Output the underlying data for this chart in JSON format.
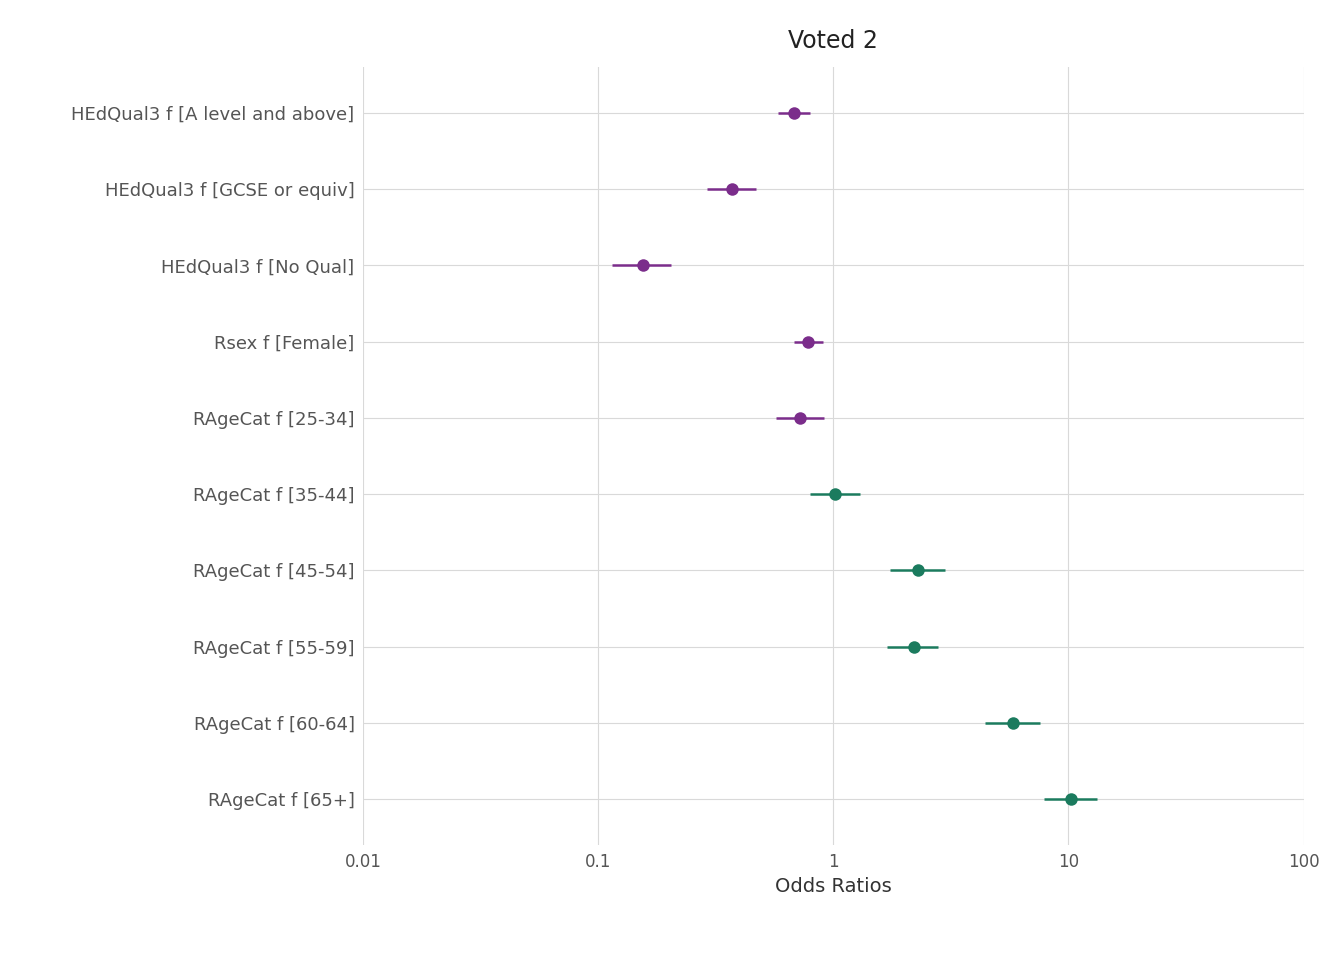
{
  "title": "Voted 2",
  "xlabel": "Odds Ratios",
  "background_color": "#ffffff",
  "grid_color": "#d9d9d9",
  "labels": [
    "HEdQual3 f [A level and above]",
    "HEdQual3 f [GCSE or equiv]",
    "HEdQual3 f [No Qual]",
    "Rsex f [Female]",
    "RAgeCat f [25-34]",
    "RAgeCat f [35-44]",
    "RAgeCat f [45-54]",
    "RAgeCat f [55-59]",
    "RAgeCat f [60-64]",
    "RAgeCat f [65+]"
  ],
  "or": [
    0.68,
    0.37,
    0.155,
    0.78,
    0.72,
    1.02,
    2.3,
    2.2,
    5.8,
    10.2
  ],
  "ci_low": [
    0.58,
    0.29,
    0.115,
    0.68,
    0.57,
    0.8,
    1.75,
    1.7,
    4.4,
    7.9
  ],
  "ci_high": [
    0.8,
    0.47,
    0.205,
    0.9,
    0.91,
    1.3,
    3.0,
    2.8,
    7.6,
    13.2
  ],
  "colors": [
    "#7B2D8B",
    "#7B2D8B",
    "#7B2D8B",
    "#7B2D8B",
    "#7B2D8B",
    "#1B7B5E",
    "#1B7B5E",
    "#1B7B5E",
    "#1B7B5E",
    "#1B7B5E"
  ],
  "xlim": [
    0.01,
    100
  ],
  "xticks": [
    0.01,
    0.1,
    1,
    10,
    100
  ],
  "xtick_labels": [
    "0.01",
    "0.1",
    "1",
    "10",
    "100"
  ],
  "title_fontsize": 17,
  "label_fontsize": 13,
  "tick_fontsize": 12,
  "xlabel_fontsize": 14,
  "marker_size": 9,
  "line_width": 1.8
}
